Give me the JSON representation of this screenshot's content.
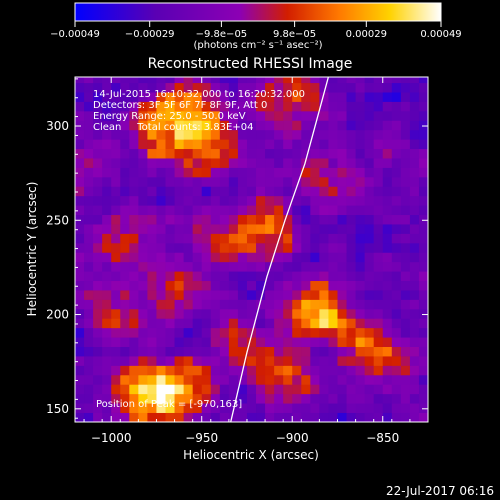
{
  "chart_data": {
    "type": "heatmap",
    "title": "Reconstructed RHESSI Image",
    "xlabel": "Heliocentric X (arcsec)",
    "ylabel": "Heliocentric Y (arcsec)",
    "xlim": [
      -1020,
      -825
    ],
    "ylim": [
      143,
      326
    ],
    "x_ticks": [
      -1000,
      -950,
      -900,
      -850
    ],
    "x_tick_labels": [
      "−1000",
      "−950",
      "−900",
      "−850"
    ],
    "y_ticks": [
      150,
      200,
      250,
      300
    ],
    "y_tick_labels": [
      "150",
      "200",
      "250",
      "300"
    ],
    "colorbar": {
      "min": -0.00049,
      "max": 0.00049,
      "ticks": [
        -0.00049,
        -0.00029,
        -9.8e-05,
        9.8e-05,
        0.00029,
        0.00049
      ],
      "tick_labels": [
        "−0.00049",
        "−0.00029",
        "−9.8e−05",
        "9.8e−05",
        "0.00029",
        "0.00049"
      ],
      "unit_label": "(photons cm⁻² s⁻¹ asec⁻²)",
      "colormap": [
        "#0000ff",
        "#5a00b4",
        "#8c00b4",
        "#d21e00",
        "#ff7800",
        "#ffd200",
        "#ffffff"
      ]
    },
    "annotations": [
      "14-Jul-2015 16:10:32.000 to 16:20:32.000",
      "Detectors: 3F 5F 6F 7F 8F 9F, Att 0",
      "Energy Range: 25.0 - 50.0 keV",
      "Clean     Total counts: 3.83E+04"
    ],
    "peak_label": "Position of Peak = [-970,163]",
    "peak": [
      -970,
      163
    ],
    "limb_curve": [
      [
        -934,
        143
      ],
      [
        -925,
        180
      ],
      [
        -914,
        220
      ],
      [
        -904,
        250
      ],
      [
        -893,
        280
      ],
      [
        -880,
        326
      ]
    ],
    "bright_sources": [
      {
        "x": -983,
        "y": 158,
        "amplitude": 1.0
      },
      {
        "x": -960,
        "y": 160,
        "amplitude": 0.9
      },
      {
        "x": -975,
        "y": 300,
        "amplitude": 0.85
      },
      {
        "x": -948,
        "y": 288,
        "amplitude": 0.8
      },
      {
        "x": -955,
        "y": 310,
        "amplitude": 0.75
      },
      {
        "x": -900,
        "y": 315,
        "amplitude": 0.75
      },
      {
        "x": -940,
        "y": 240,
        "amplitude": 0.6
      },
      {
        "x": -990,
        "y": 240,
        "amplitude": 0.55
      },
      {
        "x": -915,
        "y": 245,
        "amplitude": 0.6
      },
      {
        "x": -895,
        "y": 205,
        "amplitude": 0.65
      },
      {
        "x": -880,
        "y": 200,
        "amplitude": 0.6
      },
      {
        "x": -905,
        "y": 170,
        "amplitude": 0.7
      },
      {
        "x": -930,
        "y": 180,
        "amplitude": 0.55
      },
      {
        "x": -860,
        "y": 185,
        "amplitude": 0.65
      },
      {
        "x": -840,
        "y": 170,
        "amplitude": 0.5
      },
      {
        "x": -1000,
        "y": 200,
        "amplitude": 0.45
      },
      {
        "x": -965,
        "y": 215,
        "amplitude": 0.5
      },
      {
        "x": -880,
        "y": 270,
        "amplitude": 0.45
      },
      {
        "x": -1010,
        "y": 280,
        "amplitude": 0.4
      }
    ]
  },
  "footer": {
    "timestamp": "22-Jul-2017 06:16"
  }
}
